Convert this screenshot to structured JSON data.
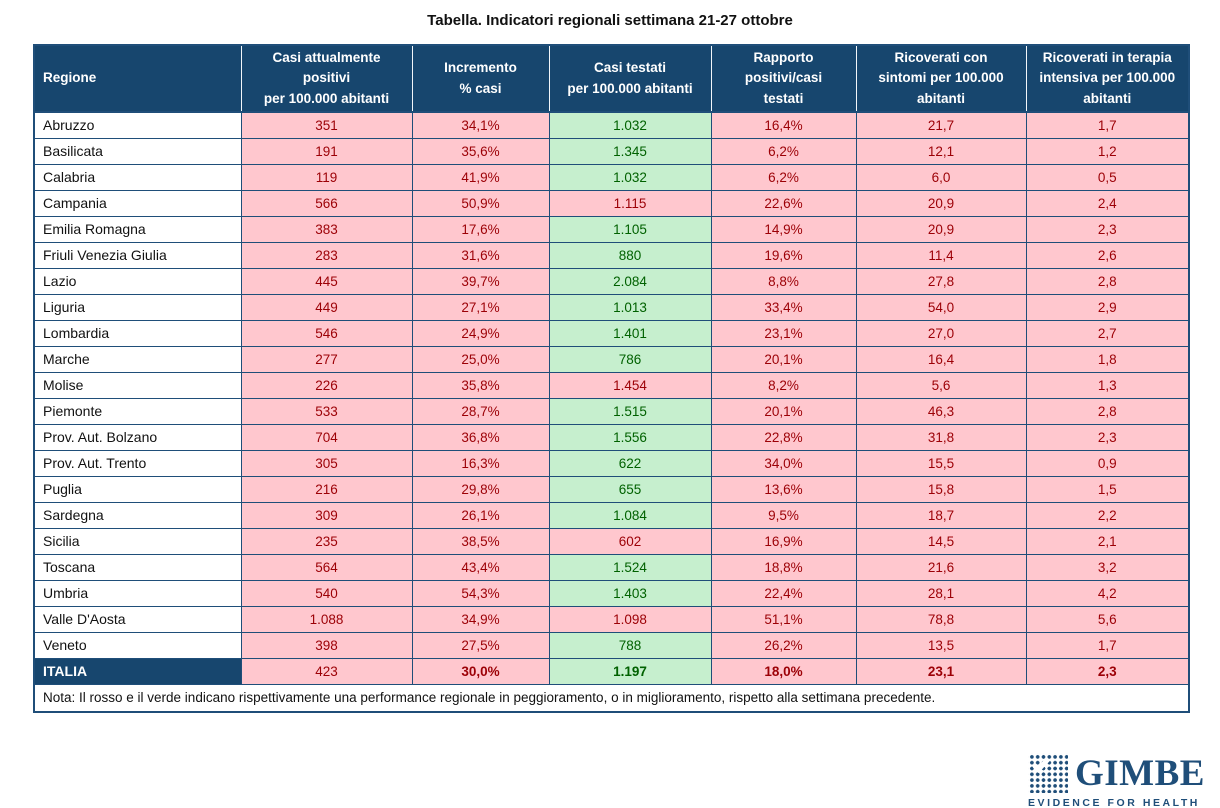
{
  "title": "Tabella. Indicatori regionali settimana 21-27 ottobre",
  "note": "Nota: Il rosso e il verde indicano rispettivamente una performance regionale in peggioramento, o in miglioramento, rispetto alla settimana precedente.",
  "colors": {
    "header_bg": "#17466E",
    "border": "#1F4E79",
    "worsening_bg": "#FFC7CE",
    "worsening_text": "#9C0006",
    "improving_bg": "#C6EFCE",
    "improving_text": "#006100",
    "logo": "#1F4E79"
  },
  "logo": {
    "name": "GIMBE",
    "tagline": "EVIDENCE FOR HEALTH",
    "mark": "dot-matrix-check-icon"
  },
  "table": {
    "columns": [
      "Regione",
      "Casi attualmente\npositivi\nper 100.000 abitanti",
      "Incremento\n% casi",
      "Casi testati\nper 100.000 abitanti",
      "Rapporto\npositivi/casi\ntestati",
      "Ricoverati con\nsintomi per 100.000\nabitanti",
      "Ricoverati in terapia\nintensiva per 100.000\nabitanti"
    ],
    "rows": [
      {
        "region": "Abruzzo",
        "values": [
          "351",
          "34,1%",
          "1.032",
          "16,4%",
          "21,7",
          "1,7"
        ],
        "states": [
          "bad",
          "bad",
          "good",
          "bad",
          "bad",
          "bad"
        ]
      },
      {
        "region": "Basilicata",
        "values": [
          "191",
          "35,6%",
          "1.345",
          "6,2%",
          "12,1",
          "1,2"
        ],
        "states": [
          "bad",
          "bad",
          "good",
          "bad",
          "bad",
          "bad"
        ]
      },
      {
        "region": "Calabria",
        "values": [
          "119",
          "41,9%",
          "1.032",
          "6,2%",
          "6,0",
          "0,5"
        ],
        "states": [
          "bad",
          "bad",
          "good",
          "bad",
          "bad",
          "bad"
        ]
      },
      {
        "region": "Campania",
        "values": [
          "566",
          "50,9%",
          "1.115",
          "22,6%",
          "20,9",
          "2,4"
        ],
        "states": [
          "bad",
          "bad",
          "bad",
          "bad",
          "bad",
          "bad"
        ]
      },
      {
        "region": "Emilia Romagna",
        "values": [
          "383",
          "17,6%",
          "1.105",
          "14,9%",
          "20,9",
          "2,3"
        ],
        "states": [
          "bad",
          "bad",
          "good",
          "bad",
          "bad",
          "bad"
        ]
      },
      {
        "region": "Friuli Venezia Giulia",
        "values": [
          "283",
          "31,6%",
          "880",
          "19,6%",
          "11,4",
          "2,6"
        ],
        "states": [
          "bad",
          "bad",
          "good",
          "bad",
          "bad",
          "bad"
        ]
      },
      {
        "region": "Lazio",
        "values": [
          "445",
          "39,7%",
          "2.084",
          "8,8%",
          "27,8",
          "2,8"
        ],
        "states": [
          "bad",
          "bad",
          "good",
          "bad",
          "bad",
          "bad"
        ]
      },
      {
        "region": "Liguria",
        "values": [
          "449",
          "27,1%",
          "1.013",
          "33,4%",
          "54,0",
          "2,9"
        ],
        "states": [
          "bad",
          "bad",
          "good",
          "bad",
          "bad",
          "bad"
        ]
      },
      {
        "region": "Lombardia",
        "values": [
          "546",
          "24,9%",
          "1.401",
          "23,1%",
          "27,0",
          "2,7"
        ],
        "states": [
          "bad",
          "bad",
          "good",
          "bad",
          "bad",
          "bad"
        ]
      },
      {
        "region": "Marche",
        "values": [
          "277",
          "25,0%",
          "786",
          "20,1%",
          "16,4",
          "1,8"
        ],
        "states": [
          "bad",
          "bad",
          "good",
          "bad",
          "bad",
          "bad"
        ]
      },
      {
        "region": "Molise",
        "values": [
          "226",
          "35,8%",
          "1.454",
          "8,2%",
          "5,6",
          "1,3"
        ],
        "states": [
          "bad",
          "bad",
          "bad",
          "bad",
          "bad",
          "bad"
        ]
      },
      {
        "region": "Piemonte",
        "values": [
          "533",
          "28,7%",
          "1.515",
          "20,1%",
          "46,3",
          "2,8"
        ],
        "states": [
          "bad",
          "bad",
          "good",
          "bad",
          "bad",
          "bad"
        ]
      },
      {
        "region": "Prov. Aut. Bolzano",
        "values": [
          "704",
          "36,8%",
          "1.556",
          "22,8%",
          "31,8",
          "2,3"
        ],
        "states": [
          "bad",
          "bad",
          "good",
          "bad",
          "bad",
          "bad"
        ]
      },
      {
        "region": "Prov. Aut. Trento",
        "values": [
          "305",
          "16,3%",
          "622",
          "34,0%",
          "15,5",
          "0,9"
        ],
        "states": [
          "bad",
          "bad",
          "good",
          "bad",
          "bad",
          "bad"
        ]
      },
      {
        "region": "Puglia",
        "values": [
          "216",
          "29,8%",
          "655",
          "13,6%",
          "15,8",
          "1,5"
        ],
        "states": [
          "bad",
          "bad",
          "good",
          "bad",
          "bad",
          "bad"
        ]
      },
      {
        "region": "Sardegna",
        "values": [
          "309",
          "26,1%",
          "1.084",
          "9,5%",
          "18,7",
          "2,2"
        ],
        "states": [
          "bad",
          "bad",
          "good",
          "bad",
          "bad",
          "bad"
        ]
      },
      {
        "region": "Sicilia",
        "values": [
          "235",
          "38,5%",
          "602",
          "16,9%",
          "14,5",
          "2,1"
        ],
        "states": [
          "bad",
          "bad",
          "bad",
          "bad",
          "bad",
          "bad"
        ]
      },
      {
        "region": "Toscana",
        "values": [
          "564",
          "43,4%",
          "1.524",
          "18,8%",
          "21,6",
          "3,2"
        ],
        "states": [
          "bad",
          "bad",
          "good",
          "bad",
          "bad",
          "bad"
        ]
      },
      {
        "region": "Umbria",
        "values": [
          "540",
          "54,3%",
          "1.403",
          "22,4%",
          "28,1",
          "4,2"
        ],
        "states": [
          "bad",
          "bad",
          "good",
          "bad",
          "bad",
          "bad"
        ]
      },
      {
        "region": "Valle D'Aosta",
        "values": [
          "1.088",
          "34,9%",
          "1.098",
          "51,1%",
          "78,8",
          "5,6"
        ],
        "states": [
          "bad",
          "bad",
          "bad",
          "bad",
          "bad",
          "bad"
        ]
      },
      {
        "region": "Veneto",
        "values": [
          "398",
          "27,5%",
          "788",
          "26,2%",
          "13,5",
          "1,7"
        ],
        "states": [
          "bad",
          "bad",
          "good",
          "bad",
          "bad",
          "bad"
        ]
      },
      {
        "region": "ITALIA",
        "total": true,
        "values": [
          "423",
          "30,0%",
          "1.197",
          "18,0%",
          "23,1",
          "2,3"
        ],
        "states": [
          "bad",
          "bad",
          "good",
          "bad",
          "bad",
          "bad"
        ],
        "bold": [
          false,
          true,
          true,
          true,
          true,
          true
        ]
      }
    ]
  },
  "chart_data": {
    "type": "table",
    "title": "Tabella. Indicatori regionali settimana 21-27 ottobre",
    "columns": [
      "Regione",
      "Casi attualmente positivi per 100.000 abitanti",
      "Incremento % casi",
      "Casi testati per 100.000 abitanti",
      "Rapporto positivi/casi testati",
      "Ricoverati con sintomi per 100.000 abitanti",
      "Ricoverati in terapia intensiva per 100.000 abitanti"
    ],
    "rows": [
      [
        "Abruzzo",
        351,
        "34,1%",
        1032,
        "16,4%",
        21.7,
        1.7
      ],
      [
        "Basilicata",
        191,
        "35,6%",
        1345,
        "6,2%",
        12.1,
        1.2
      ],
      [
        "Calabria",
        119,
        "41,9%",
        1032,
        "6,2%",
        6.0,
        0.5
      ],
      [
        "Campania",
        566,
        "50,9%",
        1115,
        "22,6%",
        20.9,
        2.4
      ],
      [
        "Emilia Romagna",
        383,
        "17,6%",
        1105,
        "14,9%",
        20.9,
        2.3
      ],
      [
        "Friuli Venezia Giulia",
        283,
        "31,6%",
        880,
        "19,6%",
        11.4,
        2.6
      ],
      [
        "Lazio",
        445,
        "39,7%",
        2084,
        "8,8%",
        27.8,
        2.8
      ],
      [
        "Liguria",
        449,
        "27,1%",
        1013,
        "33,4%",
        54.0,
        2.9
      ],
      [
        "Lombardia",
        546,
        "24,9%",
        1401,
        "23,1%",
        27.0,
        2.7
      ],
      [
        "Marche",
        277,
        "25,0%",
        786,
        "20,1%",
        16.4,
        1.8
      ],
      [
        "Molise",
        226,
        "35,8%",
        1454,
        "8,2%",
        5.6,
        1.3
      ],
      [
        "Piemonte",
        533,
        "28,7%",
        1515,
        "20,1%",
        46.3,
        2.8
      ],
      [
        "Prov. Aut. Bolzano",
        704,
        "36,8%",
        1556,
        "22,8%",
        31.8,
        2.3
      ],
      [
        "Prov. Aut. Trento",
        305,
        "16,3%",
        622,
        "34,0%",
        15.5,
        0.9
      ],
      [
        "Puglia",
        216,
        "29,8%",
        655,
        "13,6%",
        15.8,
        1.5
      ],
      [
        "Sardegna",
        309,
        "26,1%",
        1084,
        "9,5%",
        18.7,
        2.2
      ],
      [
        "Sicilia",
        235,
        "38,5%",
        602,
        "16,9%",
        14.5,
        2.1
      ],
      [
        "Toscana",
        564,
        "43,4%",
        1524,
        "18,8%",
        21.6,
        3.2
      ],
      [
        "Umbria",
        540,
        "54,3%",
        1403,
        "22,4%",
        28.1,
        4.2
      ],
      [
        "Valle D'Aosta",
        1088,
        "34,9%",
        1098,
        "51,1%",
        78.8,
        5.6
      ],
      [
        "Veneto",
        398,
        "27,5%",
        788,
        "26,2%",
        13.5,
        1.7
      ],
      [
        "ITALIA",
        423,
        "30,0%",
        1197,
        "18,0%",
        23.1,
        2.3
      ]
    ],
    "cell_color_legend": {
      "red": "performance regionale in peggioramento rispetto alla settimana precedente",
      "green": "performance regionale in miglioramento rispetto alla settimana precedente"
    }
  }
}
